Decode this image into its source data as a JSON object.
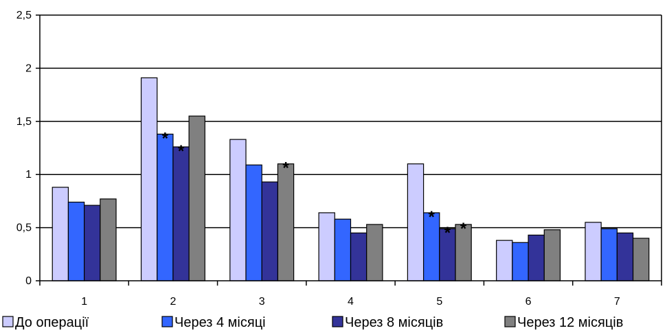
{
  "chart_data": {
    "type": "bar",
    "title": "",
    "xlabel": "",
    "ylabel": "",
    "ylim": [
      0,
      2.5
    ],
    "yticks": [
      "0",
      "0,5",
      "1",
      "1,5",
      "2",
      "2,5"
    ],
    "ytick_values": [
      0,
      0.5,
      1,
      1.5,
      2,
      2.5
    ],
    "categories": [
      "1",
      "2",
      "3",
      "4",
      "5",
      "6",
      "7"
    ],
    "series": [
      {
        "name": "До операції",
        "color": "#CCCCFF",
        "values": [
          0.88,
          1.91,
          1.33,
          0.64,
          1.1,
          0.38,
          0.55
        ]
      },
      {
        "name": "Через 4 місяці",
        "color": "#3366FF",
        "values": [
          0.74,
          1.38,
          1.09,
          0.58,
          0.64,
          0.36,
          0.49
        ]
      },
      {
        "name": "Через 8 місяців",
        "color": "#333399",
        "values": [
          0.71,
          1.26,
          0.93,
          0.45,
          0.49,
          0.43,
          0.45
        ]
      },
      {
        "name": "Через 12 місяців",
        "color": "#808080",
        "values": [
          0.77,
          1.55,
          1.1,
          0.53,
          0.53,
          0.48,
          0.4
        ]
      }
    ],
    "annotations": [
      {
        "text": "*",
        "category": "2",
        "series": 1
      },
      {
        "text": "*",
        "category": "2",
        "series": 2
      },
      {
        "text": "*",
        "category": "3",
        "series": 3
      },
      {
        "text": "*",
        "category": "5",
        "series": 1
      },
      {
        "text": "*",
        "category": "5",
        "series": 2
      },
      {
        "text": "*",
        "category": "5",
        "series": 3
      }
    ],
    "grid": true,
    "legend_position": "bottom"
  }
}
